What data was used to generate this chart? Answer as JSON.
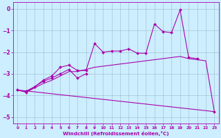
{
  "xlabel": "Windchill (Refroidissement éolien,°C)",
  "xlim": [
    -0.5,
    23.5
  ],
  "ylim": [
    -5.3,
    0.3
  ],
  "yticks": [
    0,
    -1,
    -2,
    -3,
    -4,
    -5
  ],
  "xticks": [
    0,
    1,
    2,
    3,
    4,
    5,
    6,
    7,
    8,
    9,
    10,
    11,
    12,
    13,
    14,
    15,
    16,
    17,
    18,
    19,
    20,
    21,
    22,
    23
  ],
  "bg_color": "#cceeff",
  "line_color": "#aa00aa",
  "grid_color": "#99bbcc",
  "series": [
    {
      "x": [
        1,
        2,
        3,
        4,
        5,
        6,
        7,
        8,
        9,
        10,
        11,
        12,
        13,
        14,
        15,
        16,
        17,
        18,
        19,
        20,
        21
      ],
      "y": [
        -3.8,
        -3.6,
        -3.3,
        -3.1,
        -2.7,
        -2.6,
        -2.85,
        -2.85,
        -1.6,
        -2.0,
        -1.95,
        -1.95,
        -1.85,
        -2.05,
        -2.05,
        -0.7,
        -1.05,
        -1.1,
        -0.05,
        -2.25,
        -2.3
      ],
      "marker": true
    },
    {
      "x": [
        0,
        1,
        2,
        3,
        4,
        5,
        6,
        7,
        8,
        9,
        10,
        11,
        12,
        13,
        14,
        15,
        16,
        17,
        18,
        19,
        20,
        21,
        22,
        23
      ],
      "y": [
        -3.75,
        -3.85,
        -3.65,
        -3.45,
        -3.3,
        -3.1,
        -2.9,
        -2.9,
        -2.8,
        -2.7,
        -2.65,
        -2.6,
        -2.55,
        -2.5,
        -2.45,
        -2.4,
        -2.35,
        -2.3,
        -2.25,
        -2.2,
        -2.3,
        -2.35,
        -2.4,
        -4.75
      ],
      "marker": false
    },
    {
      "x": [
        0,
        1,
        2,
        3,
        4,
        5,
        6,
        7,
        8
      ],
      "y": [
        -3.75,
        -3.85,
        -3.6,
        -3.35,
        -3.2,
        -3.0,
        -2.8,
        -3.2,
        -3.0
      ],
      "marker": true
    },
    {
      "x": [
        0,
        23
      ],
      "y": [
        -3.75,
        -4.75
      ],
      "marker": true
    }
  ]
}
